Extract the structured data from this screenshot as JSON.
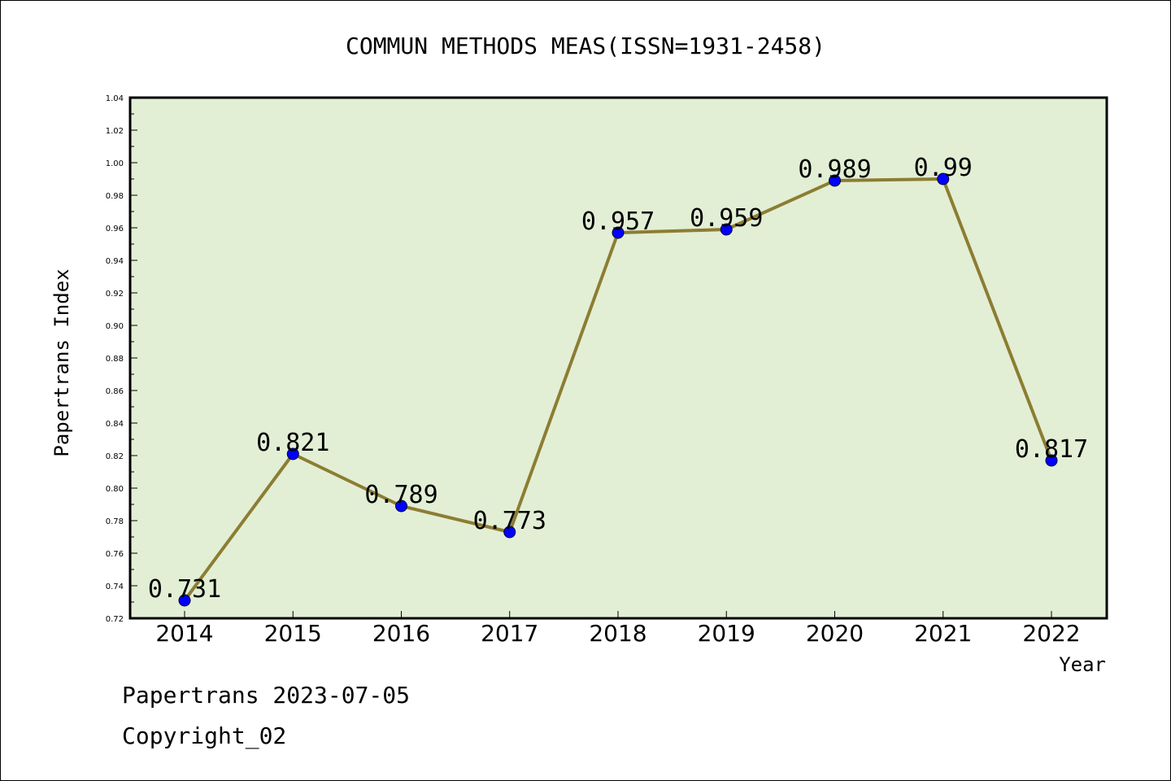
{
  "chart_data": {
    "type": "line",
    "title": "COMMUN METHODS MEAS(ISSN=1931-2458)",
    "xlabel": "Year",
    "ylabel": "Papertrans Index",
    "categories": [
      "2014",
      "2015",
      "2016",
      "2017",
      "2018",
      "2019",
      "2020",
      "2021",
      "2022"
    ],
    "values": [
      0.731,
      0.821,
      0.789,
      0.773,
      0.957,
      0.959,
      0.989,
      0.99,
      0.817
    ],
    "data_labels": [
      "0.731",
      "0.821",
      "0.789",
      "0.773",
      "0.957",
      "0.959",
      "0.989",
      "0.99",
      "0.817"
    ],
    "ylim": [
      0.72,
      1.04
    ],
    "yticks": [
      "0.72",
      "0.74",
      "0.76",
      "0.78",
      "0.80",
      "0.82",
      "0.84",
      "0.86",
      "0.88",
      "0.90",
      "0.92",
      "0.94",
      "0.96",
      "0.98",
      "1.00",
      "1.02",
      "1.04"
    ],
    "grid": false,
    "colors": {
      "plot_background": "#e2efd5",
      "line": "#8c7d33",
      "marker": "#0000ff"
    }
  },
  "footer": {
    "date_text": "Papertrans 2023-07-05",
    "copyright": "Copyright_02"
  }
}
